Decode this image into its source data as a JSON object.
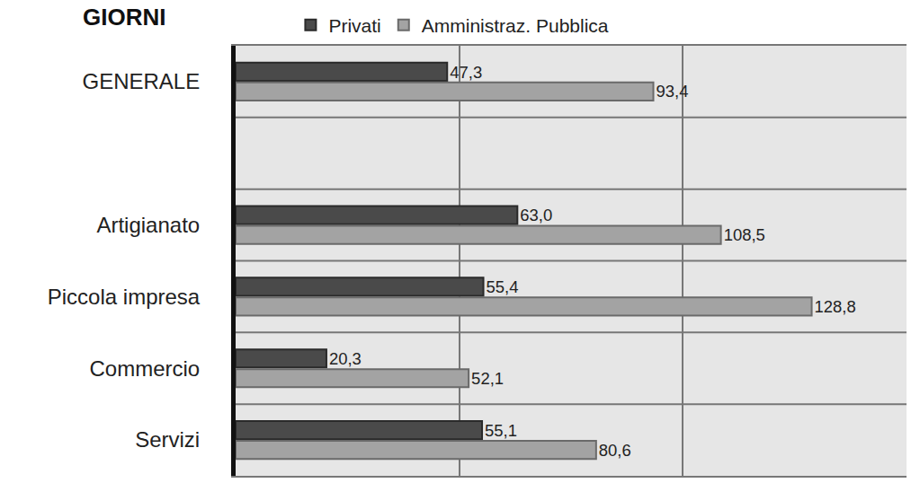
{
  "chart_data": {
    "type": "bar",
    "title": "GIORNI",
    "orientation": "horizontal",
    "categories": [
      "GENERALE",
      null,
      "Artigianato",
      "Piccola impresa",
      "Commercio",
      "Servizi"
    ],
    "series": [
      {
        "name": "Privati",
        "color": "#4a4a4a",
        "values": [
          47.3,
          null,
          63.0,
          55.4,
          20.3,
          55.1
        ],
        "value_labels": [
          "47,3",
          null,
          "63,0",
          "55,4",
          "20,3",
          "55,1"
        ]
      },
      {
        "name": "Amministraz. Pubblica",
        "color": "#a3a3a3",
        "values": [
          93.4,
          null,
          108.5,
          128.8,
          52.1,
          80.6
        ],
        "value_labels": [
          "93,4",
          null,
          "108,5",
          "128,8",
          "52,1",
          "80,6"
        ]
      }
    ],
    "xlim": [
      0,
      150
    ],
    "xticks": [
      0,
      50,
      100,
      150
    ],
    "grid": true,
    "legend": "top",
    "data_labels": true,
    "tick_labels": "y"
  }
}
